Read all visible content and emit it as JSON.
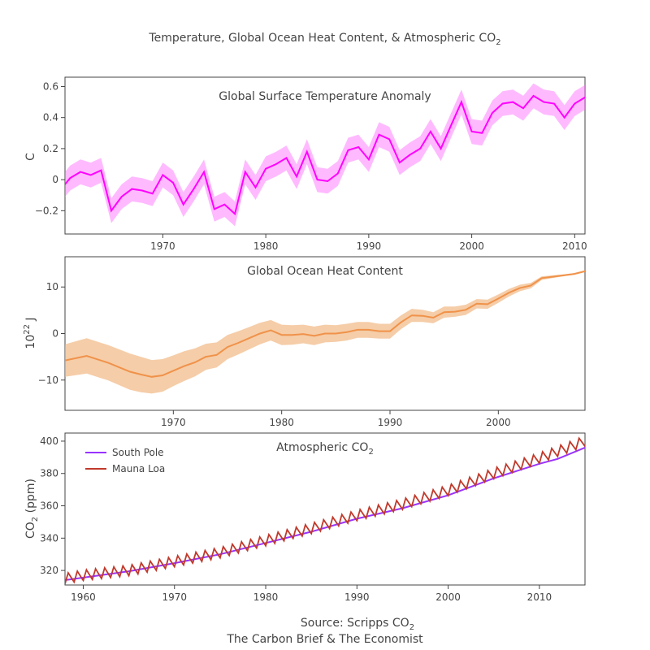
{
  "figure": {
    "title": "Temperature, Global Ocean Heat Content, & Atmospheric CO",
    "title_sub": "2",
    "source_line1": "Source: Scripps CO",
    "source_line1_sub": "2",
    "source_line2": "The Carbon Brief & The Economist"
  },
  "chart_data": [
    {
      "type": "line",
      "title": "Global Surface Temperature Anomaly",
      "ylabel": "C",
      "xlim": [
        1960.5,
        2011
      ],
      "ylim": [
        -0.35,
        0.66
      ],
      "xticks": [
        1970,
        1980,
        1990,
        2000,
        2010
      ],
      "yticks": [
        -0.2,
        0,
        0.2,
        0.4,
        0.6
      ],
      "ytick_labels": [
        "−0.2",
        "0",
        "0.2",
        "0.4",
        "0.6"
      ],
      "band": 0.08,
      "color": "#ff00ff",
      "band_color": "#ff66ff",
      "series": [
        {
          "x": [
            1960.5,
            1961,
            1962,
            1963,
            1964,
            1965,
            1966,
            1967,
            1968,
            1969,
            1970,
            1971,
            1972,
            1973,
            1974,
            1975,
            1976,
            1977,
            1978,
            1979,
            1980,
            1981,
            1982,
            1983,
            1984,
            1985,
            1986,
            1987,
            1988,
            1989,
            1990,
            1991,
            1992,
            1993,
            1994,
            1995,
            1996,
            1997,
            1998,
            1999,
            2000,
            2001,
            2002,
            2003,
            2004,
            2005,
            2006,
            2007,
            2008,
            2009,
            2010,
            2011
          ],
          "values": [
            -0.03,
            0.01,
            0.05,
            0.03,
            0.06,
            -0.2,
            -0.11,
            -0.06,
            -0.07,
            -0.09,
            0.03,
            -0.02,
            -0.16,
            -0.06,
            0.05,
            -0.19,
            -0.16,
            -0.22,
            0.05,
            -0.05,
            0.07,
            0.1,
            0.14,
            0.02,
            0.18,
            0.0,
            -0.01,
            0.04,
            0.19,
            0.21,
            0.13,
            0.29,
            0.26,
            0.11,
            0.16,
            0.2,
            0.31,
            0.2,
            0.35,
            0.5,
            0.31,
            0.3,
            0.43,
            0.49,
            0.5,
            0.46,
            0.54,
            0.5,
            0.49,
            0.4,
            0.49,
            0.53
          ]
        }
      ]
    },
    {
      "type": "line",
      "title": "Global Ocean Heat Content",
      "ylabel": "10",
      "ylabel_sup": "22",
      "ylabel_unit": " J",
      "xlim": [
        1960,
        2008
      ],
      "ylim": [
        -16.5,
        16.5
      ],
      "xticks": [
        1970,
        1980,
        1990,
        2000
      ],
      "yticks": [
        -10,
        0,
        10
      ],
      "ytick_labels": [
        "−10",
        "0",
        "10"
      ],
      "color": "#f0924a",
      "band_color": "#f0b27a",
      "series": [
        {
          "x": [
            1960,
            1962,
            1964,
            1966,
            1967,
            1968,
            1969,
            1970,
            1971,
            1972,
            1973,
            1974,
            1975,
            1976,
            1977,
            1978,
            1979,
            1980,
            1981,
            1982,
            1983,
            1984,
            1985,
            1986,
            1987,
            1988,
            1989,
            1990,
            1991,
            1992,
            1993,
            1994,
            1995,
            1996,
            1997,
            1998,
            1999,
            2000,
            2001,
            2002,
            2003,
            2004,
            2005,
            2006,
            2007,
            2008
          ],
          "values": [
            -5.8,
            -4.8,
            -6.3,
            -8.2,
            -8.8,
            -9.3,
            -9.0,
            -8.0,
            -7.0,
            -6.2,
            -5.0,
            -4.6,
            -2.9,
            -2.0,
            -1.0,
            0.0,
            0.7,
            -0.3,
            -0.3,
            -0.1,
            -0.5,
            0.0,
            0.0,
            0.3,
            0.8,
            0.8,
            0.5,
            0.5,
            2.4,
            3.9,
            3.8,
            3.4,
            4.6,
            4.7,
            5.1,
            6.4,
            6.3,
            7.5,
            8.8,
            9.8,
            10.3,
            11.9,
            12.2,
            12.5,
            12.8,
            13.4
          ],
          "band": [
            3.5,
            3.8,
            3.8,
            3.9,
            3.8,
            3.6,
            3.5,
            3.3,
            3.2,
            3.0,
            2.8,
            2.7,
            2.6,
            2.5,
            2.4,
            2.3,
            2.2,
            2.2,
            2.1,
            2.0,
            2.0,
            1.9,
            1.8,
            1.8,
            1.7,
            1.7,
            1.6,
            1.6,
            1.5,
            1.4,
            1.3,
            1.2,
            1.2,
            1.1,
            1.1,
            1.0,
            1.0,
            0.9,
            0.8,
            0.7,
            0.6,
            0.4,
            0.3,
            0.2,
            0.2,
            0.2
          ]
        }
      ]
    },
    {
      "type": "line",
      "title": "Atmospheric CO",
      "title_sub": "2",
      "ylabel": "CO",
      "ylabel_sub": "2",
      "ylabel_unit": " (ppm)",
      "xlim": [
        1958,
        2015
      ],
      "ylim": [
        311,
        405
      ],
      "xticks": [
        1960,
        1970,
        1980,
        1990,
        2000,
        2010
      ],
      "yticks": [
        320,
        340,
        360,
        380,
        400
      ],
      "ytick_labels": [
        "320",
        "340",
        "360",
        "380",
        "400"
      ],
      "legend_position": "top-left",
      "series": [
        {
          "name": "South Pole",
          "color": "#9933ff",
          "x": [
            1958,
            1965,
            1970,
            1975,
            1980,
            1985,
            1990,
            1995,
            2000,
            2005,
            2010,
            2012,
            2015
          ],
          "values": [
            314,
            319.5,
            324.5,
            330,
            337,
            344,
            352,
            358.5,
            366.5,
            377,
            386,
            389,
            396
          ]
        },
        {
          "name": "Mauna Loa",
          "color": "#c0392b",
          "x": [
            1958,
            1960,
            1965,
            1970,
            1975,
            1980,
            1985,
            1990,
            1995,
            2000,
            2005,
            2010,
            2015
          ],
          "values": [
            315,
            317,
            320,
            325.5,
            331,
            338.5,
            346,
            354,
            361,
            369.5,
            380,
            389.5,
            400
          ],
          "seasonal_amplitude": 3.2
        }
      ]
    }
  ]
}
